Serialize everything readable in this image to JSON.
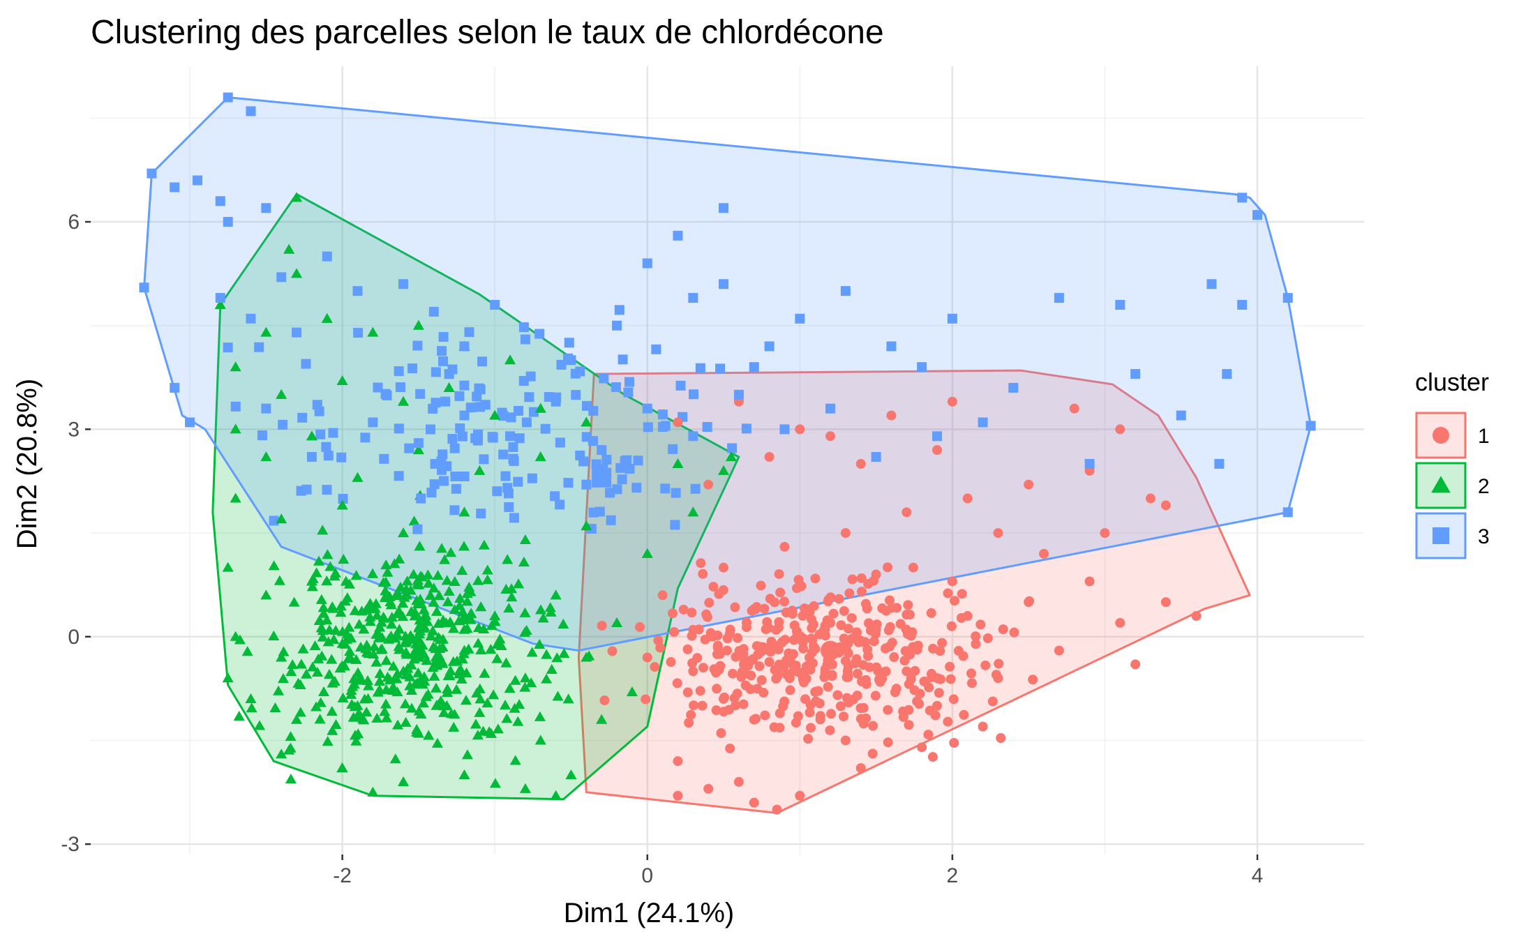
{
  "chart_data": {
    "type": "scatter",
    "title": "Clustering des parcelles selon le taux de chlordécone",
    "xlabel": "Dim1 (24.1%)",
    "ylabel": "Dim2 (20.8%)",
    "xlim": [
      -3.65,
      4.7
    ],
    "ylim": [
      -3.15,
      8.25
    ],
    "x_ticks": [
      -2,
      0,
      2,
      4
    ],
    "y_ticks": [
      -3,
      0,
      3,
      6
    ],
    "x_tick_labels": [
      "-2",
      "0",
      "2",
      "4"
    ],
    "y_tick_labels": [
      "-3",
      "0",
      "3",
      "6"
    ],
    "grid": true,
    "legend_placement": "right",
    "legend_title": "cluster",
    "series": [
      {
        "name": "1",
        "color": "#F8766D",
        "marker": "circle",
        "hull": [
          [
            -0.35,
            3.8
          ],
          [
            2.45,
            3.85
          ],
          [
            3.05,
            3.65
          ],
          [
            3.35,
            3.2
          ],
          [
            3.6,
            2.3
          ],
          [
            3.95,
            0.6
          ],
          [
            3.65,
            0.4
          ],
          [
            0.85,
            -2.55
          ],
          [
            -0.4,
            -2.25
          ],
          [
            -0.45,
            -0.3
          ],
          [
            -0.35,
            3.8
          ]
        ],
        "centroid": [
          1.2,
          -0.2
        ],
        "points": [
          [
            0.3,
            -0.5
          ],
          [
            0.5,
            -0.9
          ],
          [
            0.7,
            -1.2
          ],
          [
            0.9,
            -0.4
          ],
          [
            1.1,
            -0.8
          ],
          [
            1.3,
            -1.5
          ],
          [
            1.5,
            0.1
          ],
          [
            1.7,
            -0.5
          ],
          [
            1.9,
            -1.0
          ],
          [
            2.1,
            0.3
          ],
          [
            2.3,
            -0.6
          ],
          [
            2.5,
            0.5
          ],
          [
            2.7,
            -0.2
          ],
          [
            2.9,
            0.8
          ],
          [
            3.1,
            0.2
          ],
          [
            3.4,
            0.5
          ],
          [
            3.6,
            0.3
          ],
          [
            3.2,
            -0.4
          ],
          [
            0.2,
            -1.8
          ],
          [
            0.6,
            -2.1
          ],
          [
            1.0,
            -2.3
          ],
          [
            0.85,
            -2.5
          ],
          [
            0.4,
            -2.2
          ],
          [
            1.4,
            -1.9
          ],
          [
            1.8,
            -1.6
          ],
          [
            2.2,
            -1.3
          ],
          [
            0.0,
            -0.3
          ],
          [
            0.1,
            0.6
          ],
          [
            0.5,
            1.0
          ],
          [
            0.9,
            1.3
          ],
          [
            1.3,
            1.5
          ],
          [
            1.7,
            1.8
          ],
          [
            2.1,
            2.0
          ],
          [
            2.5,
            2.2
          ],
          [
            2.9,
            2.4
          ],
          [
            3.3,
            2.0
          ],
          [
            0.4,
            2.2
          ],
          [
            0.8,
            2.6
          ],
          [
            1.2,
            2.9
          ],
          [
            1.6,
            3.2
          ],
          [
            2.0,
            3.4
          ],
          [
            2.4,
            3.6
          ],
          [
            2.8,
            3.3
          ],
          [
            3.1,
            3.0
          ],
          [
            0.2,
            3.1
          ],
          [
            0.6,
            3.4
          ],
          [
            1.0,
            3.0
          ],
          [
            1.4,
            2.5
          ],
          [
            1.9,
            2.7
          ],
          [
            2.3,
            1.5
          ],
          [
            2.6,
            1.2
          ],
          [
            2.0,
            0.8
          ],
          [
            1.5,
            0.9
          ],
          [
            3.0,
            1.5
          ],
          [
            3.4,
            1.9
          ],
          [
            0.3,
            0.1
          ],
          [
            0.7,
            0.4
          ],
          [
            1.2,
            0.2
          ],
          [
            0.7,
            -2.4
          ],
          [
            0.2,
            -2.3
          ]
        ]
      },
      {
        "name": "2",
        "color": "#00BA38",
        "marker": "triangle",
        "hull": [
          [
            -2.3,
            6.4
          ],
          [
            -1.1,
            4.95
          ],
          [
            -0.15,
            3.5
          ],
          [
            0.6,
            2.6
          ],
          [
            0.2,
            0.7
          ],
          [
            0.0,
            -1.3
          ],
          [
            -0.55,
            -2.35
          ],
          [
            -1.8,
            -2.3
          ],
          [
            -2.45,
            -1.8
          ],
          [
            -2.75,
            -0.7
          ],
          [
            -2.85,
            1.8
          ],
          [
            -2.8,
            4.8
          ],
          [
            -2.3,
            6.4
          ]
        ],
        "centroid": [
          -1.5,
          -0.2
        ],
        "points": [
          [
            -2.3,
            6.35
          ],
          [
            -2.35,
            5.6
          ],
          [
            -2.3,
            5.25
          ],
          [
            -2.8,
            4.8
          ],
          [
            -2.5,
            4.4
          ],
          [
            -2.1,
            4.6
          ],
          [
            -1.8,
            4.4
          ],
          [
            -1.5,
            4.5
          ],
          [
            -1.2,
            4.2
          ],
          [
            -0.9,
            4.0
          ],
          [
            -2.7,
            3.9
          ],
          [
            -2.4,
            3.5
          ],
          [
            -2.0,
            3.7
          ],
          [
            -1.6,
            3.4
          ],
          [
            -1.3,
            3.6
          ],
          [
            -1.0,
            3.2
          ],
          [
            -0.7,
            3.3
          ],
          [
            -0.4,
            3.1
          ],
          [
            -2.7,
            3.0
          ],
          [
            -2.5,
            2.6
          ],
          [
            -2.2,
            2.9
          ],
          [
            -1.9,
            2.3
          ],
          [
            -1.5,
            2.7
          ],
          [
            -1.1,
            2.4
          ],
          [
            -0.7,
            2.6
          ],
          [
            -0.3,
            2.3
          ],
          [
            0.2,
            2.5
          ],
          [
            0.5,
            2.4
          ],
          [
            -2.7,
            2.0
          ],
          [
            -2.4,
            1.7
          ],
          [
            -2.0,
            1.9
          ],
          [
            -1.6,
            1.5
          ],
          [
            -1.2,
            1.8
          ],
          [
            -0.8,
            1.4
          ],
          [
            -0.4,
            1.6
          ],
          [
            0.0,
            1.2
          ],
          [
            -2.75,
            1.0
          ],
          [
            -2.5,
            0.6
          ],
          [
            -2.2,
            0.8
          ],
          [
            -1.8,
            0.4
          ],
          [
            -1.4,
            0.7
          ],
          [
            -1.0,
            0.3
          ],
          [
            -0.6,
            0.6
          ],
          [
            -0.2,
            0.2
          ],
          [
            -2.7,
            0.0
          ],
          [
            -2.4,
            -0.3
          ],
          [
            -2.0,
            -0.1
          ],
          [
            -1.6,
            -0.5
          ],
          [
            -1.2,
            -0.2
          ],
          [
            -0.8,
            -0.6
          ],
          [
            -0.4,
            -0.3
          ],
          [
            -2.6,
            -0.9
          ],
          [
            -2.3,
            -1.2
          ],
          [
            -1.9,
            -1.0
          ],
          [
            -1.5,
            -1.4
          ],
          [
            -1.1,
            -1.1
          ],
          [
            -0.7,
            -1.5
          ],
          [
            -0.3,
            -1.2
          ],
          [
            -2.4,
            -1.7
          ],
          [
            -2.0,
            -1.9
          ],
          [
            -1.6,
            -2.1
          ],
          [
            -1.2,
            -2.0
          ],
          [
            -0.8,
            -2.2
          ],
          [
            -0.5,
            -2.0
          ],
          [
            -1.8,
            -2.25
          ],
          [
            -0.6,
            -2.3
          ],
          [
            -2.75,
            -0.6
          ],
          [
            0.3,
            1.8
          ],
          [
            0.55,
            2.6
          ],
          [
            -0.1,
            -0.8
          ]
        ]
      },
      {
        "name": "3",
        "color": "#619CFF",
        "marker": "square",
        "hull": [
          [
            -2.75,
            7.8
          ],
          [
            3.85,
            6.4
          ],
          [
            3.95,
            6.35
          ],
          [
            4.05,
            6.1
          ],
          [
            4.2,
            4.9
          ],
          [
            4.35,
            3.05
          ],
          [
            4.2,
            1.8
          ],
          [
            -0.45,
            -0.2
          ],
          [
            -0.75,
            -0.1
          ],
          [
            -2.4,
            1.3
          ],
          [
            -2.9,
            3.0
          ],
          [
            -3.05,
            3.2
          ],
          [
            -3.3,
            5.05
          ],
          [
            -3.25,
            6.7
          ],
          [
            -2.75,
            7.8
          ]
        ],
        "centroid": [
          -0.3,
          2.3
        ],
        "points": [
          [
            -2.75,
            7.8
          ],
          [
            -2.6,
            7.6
          ],
          [
            -3.25,
            6.7
          ],
          [
            -3.1,
            6.5
          ],
          [
            -2.95,
            6.6
          ],
          [
            -2.8,
            6.3
          ],
          [
            -2.75,
            6.0
          ],
          [
            -2.5,
            6.2
          ],
          [
            -3.3,
            5.05
          ],
          [
            -3.1,
            3.6
          ],
          [
            -3.0,
            3.1
          ],
          [
            -2.8,
            4.9
          ],
          [
            -2.6,
            4.6
          ],
          [
            -2.4,
            5.2
          ],
          [
            -2.1,
            5.5
          ],
          [
            -1.9,
            5.0
          ],
          [
            -1.6,
            5.1
          ],
          [
            -1.4,
            4.7
          ],
          [
            -1.2,
            4.2
          ],
          [
            -1.0,
            4.8
          ],
          [
            -0.8,
            4.3
          ],
          [
            -0.5,
            4.0
          ],
          [
            -0.2,
            4.5
          ],
          [
            0.0,
            5.4
          ],
          [
            0.2,
            5.8
          ],
          [
            0.3,
            4.9
          ],
          [
            0.5,
            6.2
          ],
          [
            0.8,
            4.2
          ],
          [
            1.0,
            4.6
          ],
          [
            1.3,
            5.0
          ],
          [
            1.6,
            4.2
          ],
          [
            1.8,
            3.9
          ],
          [
            2.0,
            4.6
          ],
          [
            2.4,
            3.6
          ],
          [
            2.7,
            4.9
          ],
          [
            3.1,
            4.8
          ],
          [
            3.2,
            3.8
          ],
          [
            3.5,
            3.2
          ],
          [
            3.7,
            5.1
          ],
          [
            3.9,
            6.35
          ],
          [
            4.0,
            6.1
          ],
          [
            4.2,
            4.9
          ],
          [
            4.35,
            3.05
          ],
          [
            4.2,
            1.8
          ],
          [
            3.8,
            3.8
          ],
          [
            3.75,
            2.5
          ],
          [
            3.9,
            4.8
          ],
          [
            -2.2,
            2.6
          ],
          [
            -1.8,
            3.1
          ],
          [
            -1.5,
            2.8
          ],
          [
            -1.2,
            3.2
          ],
          [
            -0.9,
            2.9
          ],
          [
            -0.6,
            3.4
          ],
          [
            -0.3,
            2.7
          ],
          [
            0.0,
            3.3
          ],
          [
            0.3,
            2.9
          ],
          [
            0.6,
            3.5
          ],
          [
            0.9,
            3.0
          ],
          [
            1.2,
            3.3
          ],
          [
            1.5,
            2.6
          ],
          [
            1.9,
            2.9
          ],
          [
            2.2,
            3.1
          ],
          [
            -0.4,
            2.2
          ],
          [
            -0.3,
            2.3
          ],
          [
            0.5,
            5.1
          ],
          [
            -2.3,
            4.4
          ],
          [
            -1.3,
            3.8
          ],
          [
            0.7,
            3.9
          ],
          [
            2.9,
            2.5
          ],
          [
            -2.5,
            3.3
          ]
        ]
      }
    ]
  },
  "legend": {
    "title": "cluster",
    "items": [
      {
        "label": "1",
        "color": "#F8766D",
        "marker": "circle"
      },
      {
        "label": "2",
        "color": "#00BA38",
        "marker": "triangle"
      },
      {
        "label": "3",
        "color": "#619CFF",
        "marker": "square"
      }
    ]
  }
}
